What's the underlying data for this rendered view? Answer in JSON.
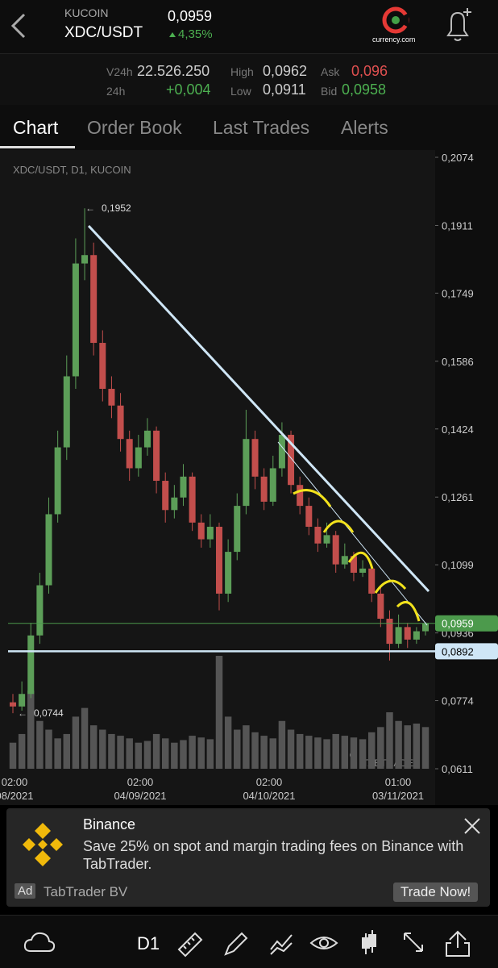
{
  "header": {
    "exchange": "KUCOIN",
    "pair": "XDC/USDT",
    "price": "0,0959",
    "change": "4,35%",
    "brand": "currency.com"
  },
  "stats": {
    "v24h_label": "V24h",
    "v24h": "22.526.250",
    "d24h_label": "24h",
    "d24h": "+0,004",
    "high_label": "High",
    "high": "0,0962",
    "low_label": "Low",
    "low": "0,0911",
    "ask_label": "Ask",
    "ask": "0,096",
    "bid_label": "Bid",
    "bid": "0,0958"
  },
  "tabs": [
    "Chart",
    "Order Book",
    "Last Trades",
    "Alerts"
  ],
  "chart_data": {
    "type": "candlestick",
    "title": "XDC/USDT, D1, KUCOIN",
    "watermark": "TABTRADER",
    "up_color": "#5c9e58",
    "down_color": "#c24e4c",
    "volume_color": "#555555",
    "ylim": [
      0.0611,
      0.2074
    ],
    "yticks": [
      {
        "value": 0.2074,
        "label": "0,2074"
      },
      {
        "value": 0.1911,
        "label": "0,1911"
      },
      {
        "value": 0.1749,
        "label": "0,1749"
      },
      {
        "value": 0.1586,
        "label": "0,1586"
      },
      {
        "value": 0.1424,
        "label": "0,1424"
      },
      {
        "value": 0.1261,
        "label": "0,1261"
      },
      {
        "value": 0.1099,
        "label": "0,1099"
      },
      {
        "value": 0.0936,
        "label": "0,0936"
      },
      {
        "value": 0.0774,
        "label": "0,0774"
      },
      {
        "value": 0.0611,
        "label": "0,0611"
      }
    ],
    "xticks": [
      {
        "time": "02:00",
        "date": "08/2021"
      },
      {
        "time": "02:00",
        "date": "04/09/2021"
      },
      {
        "time": "02:00",
        "date": "04/10/2021"
      },
      {
        "time": "01:00",
        "date": "03/11/2021"
      }
    ],
    "open": [
      0.077,
      0.076,
      0.079,
      0.093,
      0.105,
      0.122,
      0.138,
      0.155,
      0.182,
      0.184,
      0.163,
      0.152,
      0.148,
      0.14,
      0.133,
      0.138,
      0.142,
      0.13,
      0.123,
      0.126,
      0.131,
      0.12,
      0.116,
      0.119,
      0.103,
      0.113,
      0.124,
      0.14,
      0.131,
      0.125,
      0.133,
      0.141,
      0.129,
      0.124,
      0.119,
      0.115,
      0.117,
      0.11,
      0.112,
      0.108,
      0.109,
      0.103,
      0.097,
      0.091,
      0.095,
      0.092,
      0.094
    ],
    "high": [
      0.079,
      0.082,
      0.096,
      0.108,
      0.126,
      0.142,
      0.16,
      0.188,
      0.1952,
      0.187,
      0.166,
      0.155,
      0.151,
      0.142,
      0.141,
      0.145,
      0.143,
      0.132,
      0.129,
      0.134,
      0.132,
      0.122,
      0.122,
      0.12,
      0.116,
      0.127,
      0.147,
      0.142,
      0.133,
      0.136,
      0.144,
      0.142,
      0.131,
      0.126,
      0.121,
      0.12,
      0.118,
      0.115,
      0.113,
      0.111,
      0.11,
      0.105,
      0.099,
      0.098,
      0.096,
      0.095,
      0.0962
    ],
    "low": [
      0.0744,
      0.075,
      0.078,
      0.091,
      0.103,
      0.12,
      0.135,
      0.152,
      0.178,
      0.16,
      0.149,
      0.145,
      0.137,
      0.13,
      0.131,
      0.136,
      0.127,
      0.12,
      0.121,
      0.124,
      0.118,
      0.114,
      0.114,
      0.099,
      0.101,
      0.111,
      0.122,
      0.128,
      0.123,
      0.124,
      0.131,
      0.127,
      0.122,
      0.117,
      0.113,
      0.114,
      0.108,
      0.109,
      0.106,
      0.107,
      0.101,
      0.095,
      0.087,
      0.09,
      0.09,
      0.091,
      0.093
    ],
    "close": [
      0.076,
      0.079,
      0.093,
      0.105,
      0.122,
      0.138,
      0.155,
      0.182,
      0.184,
      0.163,
      0.152,
      0.148,
      0.14,
      0.133,
      0.138,
      0.142,
      0.13,
      0.123,
      0.126,
      0.131,
      0.12,
      0.116,
      0.119,
      0.103,
      0.113,
      0.124,
      0.14,
      0.131,
      0.125,
      0.133,
      0.141,
      0.129,
      0.124,
      0.119,
      0.115,
      0.117,
      0.11,
      0.112,
      0.108,
      0.109,
      0.103,
      0.097,
      0.091,
      0.095,
      0.092,
      0.094,
      0.0959
    ],
    "volume": [
      30,
      40,
      90,
      55,
      45,
      35,
      40,
      60,
      70,
      50,
      45,
      40,
      38,
      35,
      30,
      32,
      40,
      35,
      30,
      33,
      38,
      36,
      34,
      130,
      60,
      45,
      50,
      42,
      38,
      35,
      55,
      45,
      40,
      38,
      36,
      34,
      40,
      38,
      36,
      34,
      42,
      48,
      65,
      55,
      50,
      52,
      48
    ],
    "annotations": [
      {
        "value": 0.1952,
        "label": "0,1952"
      },
      {
        "value": 0.0744,
        "label": "0,0744"
      }
    ],
    "last_price": {
      "value": 0.0959,
      "label": "0,0959",
      "color": "#4c9a4c"
    },
    "support": {
      "value": 0.0892,
      "label": "0,0892",
      "color": "#cfe6f6"
    }
  },
  "ad": {
    "advertiser": "Binance",
    "text": "Save 25% on spot and margin trading fees on Binance with TabTrader.",
    "badge": "Ad",
    "sponsor": "TabTrader BV",
    "button": "Trade Now!"
  },
  "toolbar": {
    "timeframe": "D1"
  }
}
